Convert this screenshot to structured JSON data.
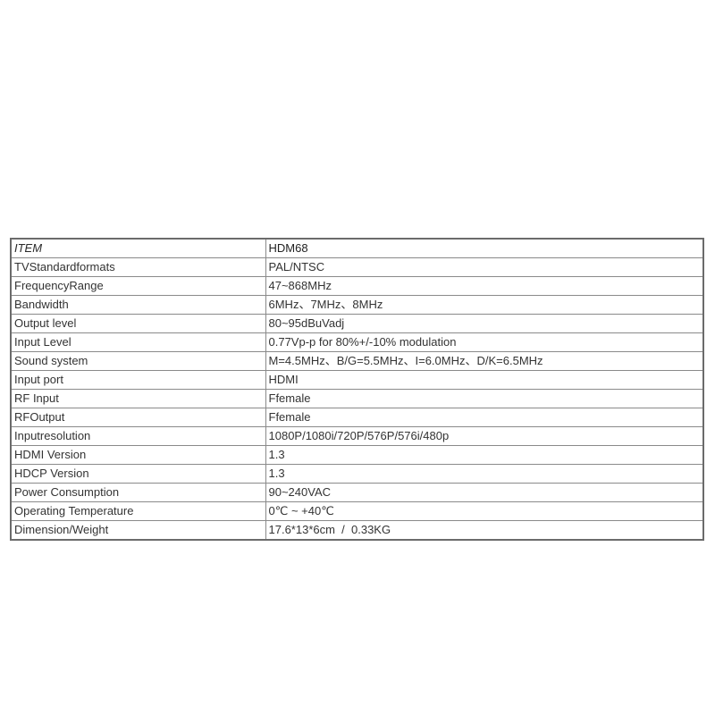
{
  "colors": {
    "page_background": "#ffffff",
    "table_outer_border": "#6b6b6b",
    "table_inner_border": "#8a8a8a",
    "text": "#333333",
    "header_text": "#222222"
  },
  "table": {
    "header": {
      "item_label": "ITEM",
      "model": "HDM68"
    },
    "rows": [
      {
        "label": "TVStandardformats",
        "value": "PAL/NTSC"
      },
      {
        "label": "FrequencyRange",
        "value": "47~868MHz"
      },
      {
        "label": "Bandwidth",
        "value": "6MHz、7MHz、8MHz"
      },
      {
        "label": "Output level",
        "value": "80~95dBuVadj"
      },
      {
        "label": "Input Level",
        "value": "0.77Vp-p for 80%+/-10% modulation"
      },
      {
        "label": "Sound system",
        "value": "M=4.5MHz、B/G=5.5MHz、I=6.0MHz、D/K=6.5MHz"
      },
      {
        "label": "Input port",
        "value": "HDMI"
      },
      {
        "label": "RF Input",
        "value": "Ffemale"
      },
      {
        "label": "RFOutput",
        "value": "Ffemale"
      },
      {
        "label": "Inputresolution",
        "value": "1080P/1080i/720P/576P/576i/480p"
      },
      {
        "label": "HDMI Version",
        "value": "1.3"
      },
      {
        "label": "HDCP Version",
        "value": "1.3"
      },
      {
        "label": "Power Consumption",
        "value": "90~240VAC"
      },
      {
        "label": "Operating Temperature",
        "value": "0℃ ~ +40℃"
      },
      {
        "label": "Dimension/Weight",
        "value": "17.6*13*6cm  /  0.33KG"
      }
    ]
  }
}
